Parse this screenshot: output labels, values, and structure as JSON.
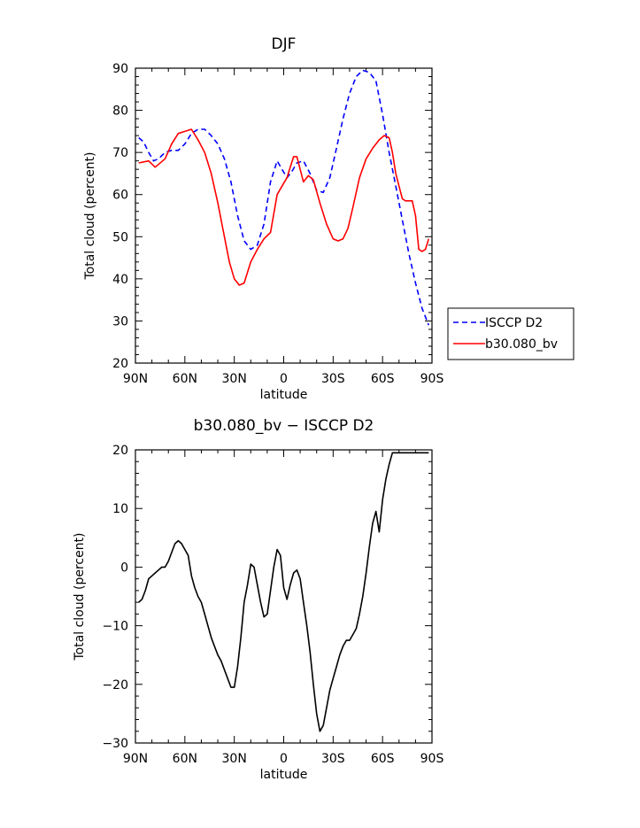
{
  "chart_data": [
    {
      "type": "line",
      "title": "DJF",
      "xlabel": "latitude",
      "ylabel": "Total cloud (percent)",
      "xlim": [
        -90,
        90
      ],
      "ylim": [
        20,
        90
      ],
      "x_ticks": [
        -90,
        -60,
        -30,
        0,
        30,
        60,
        90
      ],
      "x_tick_labels": [
        "90N",
        "60N",
        "30N",
        "0",
        "30S",
        "60S",
        "90S"
      ],
      "y_ticks": [
        20,
        30,
        40,
        50,
        60,
        70,
        80,
        90
      ],
      "y_tick_labels": [
        "20",
        "30",
        "40",
        "50",
        "60",
        "70",
        "80",
        "90"
      ],
      "legend_position": "right",
      "series": [
        {
          "name": "ISCCP D2",
          "color": "#0000ff",
          "dash": "dashed",
          "x": [
            -88,
            -85,
            -82,
            -79,
            -76,
            -72,
            -68,
            -64,
            -60,
            -56,
            -52,
            -48,
            -44,
            -40,
            -36,
            -32,
            -28,
            -24,
            -20,
            -16,
            -12,
            -8,
            -4,
            -1,
            2,
            5,
            8,
            12,
            16,
            20,
            24,
            28,
            32,
            36,
            40,
            44,
            48,
            52,
            56,
            60,
            64,
            68,
            72,
            76,
            80,
            84,
            88
          ],
          "y": [
            73.5,
            72.5,
            70,
            68,
            68.5,
            70,
            70.5,
            70.5,
            72,
            74.5,
            75.5,
            75.5,
            74,
            72,
            68.5,
            63,
            55,
            49,
            47,
            48,
            53,
            63,
            68,
            66,
            64,
            65.5,
            67.5,
            68,
            65,
            61,
            60.5,
            64,
            71,
            78,
            84,
            88,
            89.5,
            89,
            87,
            79,
            70,
            62,
            54,
            46,
            39,
            33,
            29
          ]
        },
        {
          "name": "b30.080_bv",
          "color": "#ff0000",
          "dash": "solid",
          "x": [
            -88,
            -82,
            -78,
            -72,
            -68,
            -64,
            -60,
            -56,
            -52,
            -48,
            -44,
            -40,
            -36,
            -33,
            -30,
            -27,
            -24,
            -20,
            -16,
            -12,
            -8,
            -4,
            -1,
            2,
            4,
            6,
            8,
            10,
            12,
            15,
            18,
            22,
            26,
            30,
            33,
            36,
            39,
            42,
            46,
            50,
            54,
            58,
            61,
            64,
            66,
            68,
            70,
            72,
            74,
            76,
            78,
            80,
            82,
            84,
            86,
            88
          ],
          "y": [
            67.5,
            68,
            66.5,
            68.5,
            72,
            74.5,
            75,
            75.5,
            73,
            70,
            65,
            58,
            50,
            44,
            40,
            38.5,
            39,
            44,
            47,
            49.5,
            51,
            60,
            62,
            64,
            66.5,
            69,
            69,
            66,
            63,
            64.5,
            63.5,
            58,
            53,
            49.5,
            49,
            49.5,
            52,
            57,
            64,
            68.5,
            71,
            73,
            74,
            73.5,
            70,
            65,
            62,
            59,
            58.5,
            58.5,
            58.5,
            55,
            47,
            46.5,
            47,
            49.5
          ]
        }
      ]
    },
    {
      "type": "line",
      "title": "b30.080_bv − ISCCP D2",
      "xlabel": "latitude",
      "ylabel": "Total cloud (percent)",
      "xlim": [
        -90,
        90
      ],
      "ylim": [
        -30,
        20
      ],
      "x_ticks": [
        -90,
        -60,
        -30,
        0,
        30,
        60,
        90
      ],
      "x_tick_labels": [
        "90N",
        "60N",
        "30N",
        "0",
        "30S",
        "60S",
        "90S"
      ],
      "y_ticks": [
        -30,
        -20,
        -10,
        0,
        10,
        20
      ],
      "y_tick_labels": [
        "−30",
        "−20",
        "−10",
        "0",
        "10",
        "20"
      ],
      "series": [
        {
          "color": "#000000",
          "dash": "solid",
          "x": [
            -88,
            -86,
            -84,
            -82,
            -80,
            -78,
            -76,
            -74,
            -72,
            -70,
            -68,
            -66,
            -64,
            -62,
            -60,
            -58,
            -56,
            -54,
            -52,
            -50,
            -48,
            -46,
            -44,
            -42,
            -40,
            -38,
            -36,
            -34,
            -32,
            -30,
            -28,
            -26,
            -24,
            -22,
            -20,
            -18,
            -16,
            -14,
            -12,
            -10,
            -8,
            -6,
            -4,
            -2,
            0,
            2,
            4,
            6,
            8,
            10,
            12,
            14,
            16,
            18,
            20,
            22,
            24,
            26,
            28,
            30,
            32,
            34,
            36,
            38,
            40,
            42,
            44,
            46,
            48,
            50,
            52,
            54,
            56,
            58,
            60,
            62,
            64,
            66,
            68,
            70,
            72,
            74,
            76,
            78,
            80,
            82,
            84,
            86,
            88
          ],
          "y": [
            -6,
            -5.5,
            -4,
            -2,
            -1.5,
            -1,
            -0.5,
            0,
            0,
            1,
            2.5,
            4,
            4.5,
            4,
            3,
            2,
            -1.5,
            -3.5,
            -5,
            -6,
            -8,
            -10,
            -12,
            -13.5,
            -15,
            -16,
            -17.5,
            -19,
            -20.5,
            -20.5,
            -17,
            -12,
            -6,
            -3,
            0.5,
            0,
            -3,
            -6,
            -8.5,
            -8,
            -4,
            0,
            3,
            2,
            -3.5,
            -5.5,
            -3,
            -1,
            -0.5,
            -2,
            -6,
            -10,
            -14.5,
            -20,
            -25,
            -28,
            -27,
            -24,
            -21,
            -19,
            -17,
            -15,
            -13.5,
            -12.5,
            -12.5,
            -11.5,
            -10.5,
            -8,
            -5,
            -1,
            3.5,
            7.5,
            9.5,
            6,
            11.5,
            15,
            17.5,
            19.5,
            19.5,
            19.5,
            19.5,
            19.5,
            19.5,
            19.5,
            19.5,
            19.5,
            19.5,
            19.5,
            19.5
          ]
        }
      ]
    }
  ]
}
